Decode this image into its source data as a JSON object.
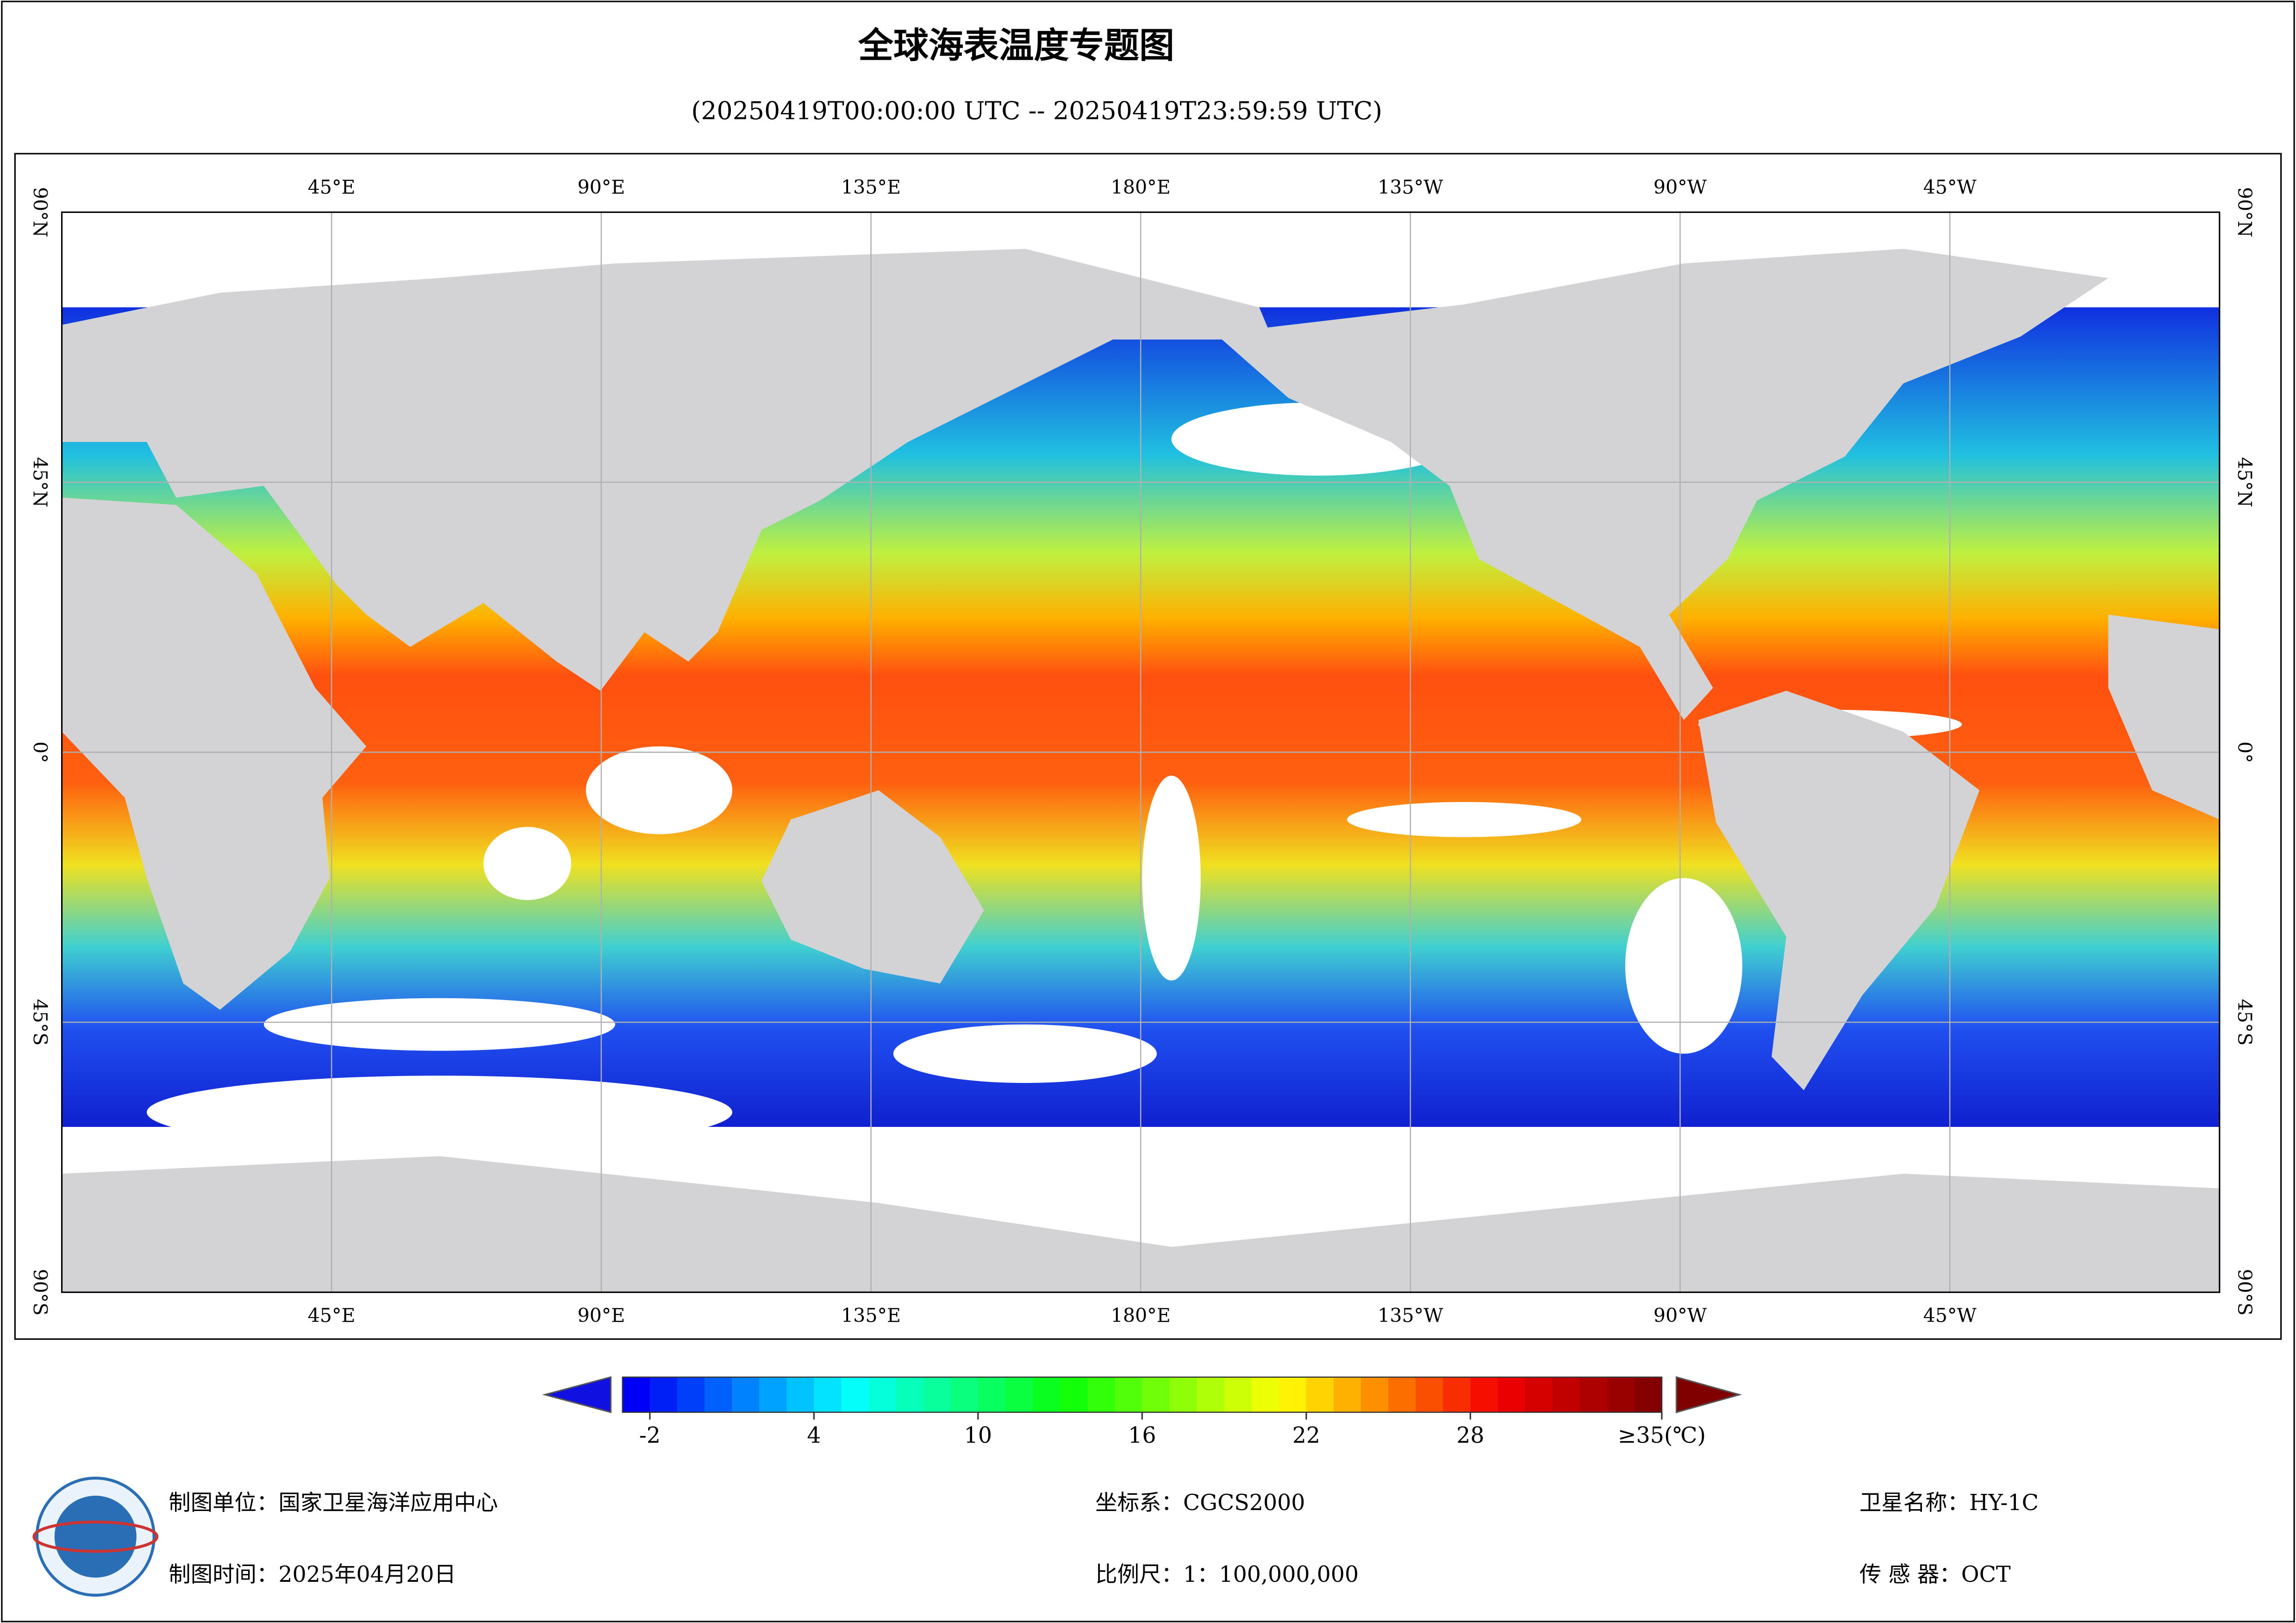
{
  "map": {
    "title": "全球海表温度专题图",
    "subtitle": "(20250419T00:00:00 UTC -- 20250419T23:59:59 UTC)",
    "extent": {
      "lon": [
        0,
        360
      ],
      "lat": [
        -90,
        90
      ]
    },
    "lon_ticks": [
      {
        "value": 45,
        "label": "45°E"
      },
      {
        "value": 90,
        "label": "90°E"
      },
      {
        "value": 135,
        "label": "135°E"
      },
      {
        "value": 180,
        "label": "180°E"
      },
      {
        "value": 225,
        "label": "135°W"
      },
      {
        "value": 270,
        "label": "90°W"
      },
      {
        "value": 315,
        "label": "45°W"
      }
    ],
    "lat_ticks": [
      {
        "value": 90,
        "label": "90°N"
      },
      {
        "value": 45,
        "label": "45°N"
      },
      {
        "value": 0,
        "label": "0°"
      },
      {
        "value": -45,
        "label": "45°S"
      },
      {
        "value": -90,
        "label": "90°S"
      }
    ],
    "legend": {
      "range": [
        -3,
        35
      ],
      "ticks": [
        -2,
        4,
        10,
        16,
        22,
        28,
        {
          "value": 35,
          "label": "≥35(℃)"
        }
      ]
    },
    "footer": {
      "unit": "制图单位：国家卫星海洋应用中心",
      "time": "制图时间：2025年04月20日",
      "crs": "坐标系：CGCS2000",
      "scale": "比例尺：1：100,000,000",
      "satellite": "卫星名称：HY-1C",
      "sensor": "传 感 器：OCT"
    }
  }
}
